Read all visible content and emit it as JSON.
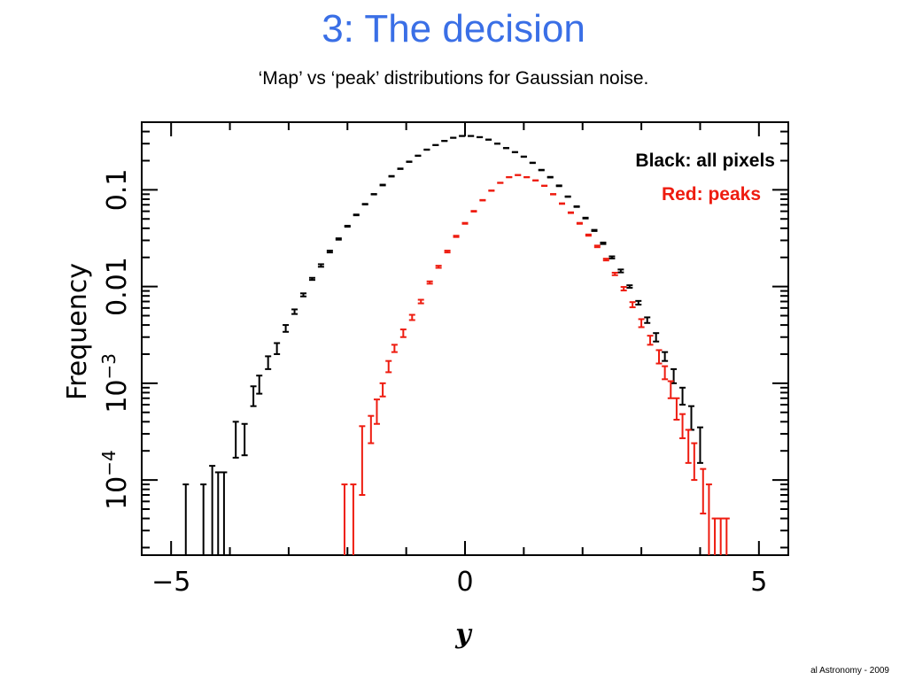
{
  "slide": {
    "title": "3: The decision",
    "subtitle": "‘Map’ vs ‘peak’ distributions for Gaussian noise.",
    "footer": "al Astronomy - 2009"
  },
  "colors": {
    "title": "#3a6fe6",
    "black_series": "#000000",
    "red_series": "#ee1c10"
  },
  "chart_data": {
    "type": "scatter",
    "title": "",
    "xlabel": "y",
    "ylabel": "Frequency",
    "xlim": [
      -5.5,
      5.5
    ],
    "ylim": [
      1.67e-05,
      0.5
    ],
    "yscale": "log",
    "grid": false,
    "x_ticks": [
      {
        "value": -5,
        "label": "−5"
      },
      {
        "value": 0,
        "label": "0"
      },
      {
        "value": 5,
        "label": "5"
      }
    ],
    "y_ticks": [
      {
        "value": 0.1,
        "label": "0.1"
      },
      {
        "value": 0.01,
        "label": "0.01"
      },
      {
        "value": 0.001,
        "label": "10−3",
        "mantissa": "10",
        "exponent": "−3"
      },
      {
        "value": 0.0001,
        "label": "10−4",
        "mantissa": "10",
        "exponent": "−4"
      }
    ],
    "legend": [
      {
        "text": "Black: all pixels",
        "color": "#000000"
      },
      {
        "text": "Red: peaks",
        "color": "#ee1c10"
      }
    ],
    "legend_position": "top-right",
    "series": [
      {
        "color": "#000000",
        "points": [
          {
            "x": -4.75,
            "y": 4e-05,
            "lo": 1.67e-05,
            "hi": 9e-05
          },
          {
            "x": -4.45,
            "y": 4e-05,
            "lo": 1.67e-05,
            "hi": 9e-05
          },
          {
            "x": -4.3,
            "y": 7e-05,
            "lo": 1.67e-05,
            "hi": 0.00014
          },
          {
            "x": -4.2,
            "y": 6e-05,
            "lo": 1.67e-05,
            "hi": 0.00012
          },
          {
            "x": -4.1,
            "y": 6e-05,
            "lo": 1.67e-05,
            "hi": 0.00012
          },
          {
            "x": -3.9,
            "y": 0.00027,
            "lo": 0.00017,
            "hi": 0.0004
          },
          {
            "x": -3.75,
            "y": 0.00027,
            "lo": 0.00018,
            "hi": 0.00038
          },
          {
            "x": -3.6,
            "y": 0.00075,
            "lo": 0.00058,
            "hi": 0.00093
          },
          {
            "x": -3.5,
            "y": 0.00095,
            "lo": 0.00078,
            "hi": 0.0012
          },
          {
            "x": -3.35,
            "y": 0.0016,
            "lo": 0.0014,
            "hi": 0.0019
          },
          {
            "x": -3.2,
            "y": 0.0023,
            "lo": 0.002,
            "hi": 0.0026
          },
          {
            "x": -3.05,
            "y": 0.0037,
            "lo": 0.0034,
            "hi": 0.004
          },
          {
            "x": -2.9,
            "y": 0.0055,
            "lo": 0.0052,
            "hi": 0.0058
          },
          {
            "x": -2.75,
            "y": 0.0082,
            "lo": 0.0079,
            "hi": 0.0085
          },
          {
            "x": -2.6,
            "y": 0.012,
            "lo": 0.0117,
            "hi": 0.0123
          },
          {
            "x": -2.45,
            "y": 0.0165,
            "lo": 0.016,
            "hi": 0.017
          },
          {
            "x": -2.3,
            "y": 0.023,
            "lo": 0.0225,
            "hi": 0.0235
          },
          {
            "x": -2.15,
            "y": 0.031,
            "lo": 0.0305,
            "hi": 0.0315
          },
          {
            "x": -2.0,
            "y": 0.042,
            "lo": 0.0415,
            "hi": 0.0425
          },
          {
            "x": -1.85,
            "y": 0.055,
            "lo": 0.0545,
            "hi": 0.0555
          },
          {
            "x": -1.7,
            "y": 0.071,
            "lo": 0.0705,
            "hi": 0.0715
          },
          {
            "x": -1.55,
            "y": 0.09,
            "lo": 0.0895,
            "hi": 0.0905
          },
          {
            "x": -1.4,
            "y": 0.112,
            "lo": 0.111,
            "hi": 0.113
          },
          {
            "x": -1.25,
            "y": 0.138,
            "lo": 0.137,
            "hi": 0.139
          },
          {
            "x": -1.1,
            "y": 0.165,
            "lo": 0.164,
            "hi": 0.166
          },
          {
            "x": -0.95,
            "y": 0.195,
            "lo": 0.194,
            "hi": 0.196
          },
          {
            "x": -0.8,
            "y": 0.225,
            "lo": 0.224,
            "hi": 0.226
          },
          {
            "x": -0.65,
            "y": 0.26,
            "lo": 0.259,
            "hi": 0.261
          },
          {
            "x": -0.5,
            "y": 0.29,
            "lo": 0.289,
            "hi": 0.291
          },
          {
            "x": -0.35,
            "y": 0.32,
            "lo": 0.319,
            "hi": 0.321
          },
          {
            "x": -0.2,
            "y": 0.345,
            "lo": 0.344,
            "hi": 0.346
          },
          {
            "x": -0.05,
            "y": 0.36,
            "lo": 0.359,
            "hi": 0.361
          },
          {
            "x": 0.1,
            "y": 0.36,
            "lo": 0.359,
            "hi": 0.361
          },
          {
            "x": 0.25,
            "y": 0.35,
            "lo": 0.349,
            "hi": 0.351
          },
          {
            "x": 0.4,
            "y": 0.33,
            "lo": 0.329,
            "hi": 0.331
          },
          {
            "x": 0.55,
            "y": 0.3,
            "lo": 0.299,
            "hi": 0.301
          },
          {
            "x": 0.7,
            "y": 0.27,
            "lo": 0.269,
            "hi": 0.271
          },
          {
            "x": 0.85,
            "y": 0.245,
            "lo": 0.244,
            "hi": 0.246
          },
          {
            "x": 1.0,
            "y": 0.22,
            "lo": 0.219,
            "hi": 0.221
          },
          {
            "x": 1.15,
            "y": 0.19,
            "lo": 0.189,
            "hi": 0.191
          },
          {
            "x": 1.3,
            "y": 0.16,
            "lo": 0.159,
            "hi": 0.161
          },
          {
            "x": 1.45,
            "y": 0.135,
            "lo": 0.134,
            "hi": 0.136
          },
          {
            "x": 1.6,
            "y": 0.11,
            "lo": 0.109,
            "hi": 0.111
          },
          {
            "x": 1.75,
            "y": 0.085,
            "lo": 0.0845,
            "hi": 0.0855
          },
          {
            "x": 1.9,
            "y": 0.067,
            "lo": 0.0665,
            "hi": 0.0675
          },
          {
            "x": 2.05,
            "y": 0.051,
            "lo": 0.0505,
            "hi": 0.0515
          },
          {
            "x": 2.2,
            "y": 0.038,
            "lo": 0.0375,
            "hi": 0.0385
          },
          {
            "x": 2.35,
            "y": 0.028,
            "lo": 0.0275,
            "hi": 0.0285
          },
          {
            "x": 2.5,
            "y": 0.02,
            "lo": 0.0195,
            "hi": 0.0205
          },
          {
            "x": 2.65,
            "y": 0.0145,
            "lo": 0.014,
            "hi": 0.015
          },
          {
            "x": 2.8,
            "y": 0.01,
            "lo": 0.0097,
            "hi": 0.0103
          },
          {
            "x": 2.95,
            "y": 0.0068,
            "lo": 0.0065,
            "hi": 0.0071
          },
          {
            "x": 3.1,
            "y": 0.0045,
            "lo": 0.0042,
            "hi": 0.0048
          },
          {
            "x": 3.25,
            "y": 0.003,
            "lo": 0.0027,
            "hi": 0.0033
          },
          {
            "x": 3.4,
            "y": 0.0019,
            "lo": 0.0017,
            "hi": 0.0021
          },
          {
            "x": 3.55,
            "y": 0.0012,
            "lo": 0.001,
            "hi": 0.0014
          },
          {
            "x": 3.7,
            "y": 0.00075,
            "lo": 0.0006,
            "hi": 0.0009
          },
          {
            "x": 3.85,
            "y": 0.00045,
            "lo": 0.00033,
            "hi": 0.00058
          },
          {
            "x": 4.0,
            "y": 0.00024,
            "lo": 0.00015,
            "hi": 0.00035
          }
        ]
      },
      {
        "color": "#ee1c10",
        "points": [
          {
            "x": -2.05,
            "y": 5.5e-05,
            "lo": 1.67e-05,
            "hi": 9e-05
          },
          {
            "x": -1.9,
            "y": 5.5e-05,
            "lo": 1.67e-05,
            "hi": 9e-05
          },
          {
            "x": -1.75,
            "y": 0.00027,
            "lo": 7e-05,
            "hi": 0.00036
          },
          {
            "x": -1.6,
            "y": 0.00035,
            "lo": 0.00024,
            "hi": 0.00046
          },
          {
            "x": -1.5,
            "y": 0.00053,
            "lo": 0.00038,
            "hi": 0.00068
          },
          {
            "x": -1.4,
            "y": 0.00087,
            "lo": 0.00073,
            "hi": 0.001
          },
          {
            "x": -1.3,
            "y": 0.0015,
            "lo": 0.0013,
            "hi": 0.0017
          },
          {
            "x": -1.2,
            "y": 0.0023,
            "lo": 0.0021,
            "hi": 0.0025
          },
          {
            "x": -1.05,
            "y": 0.0033,
            "lo": 0.003,
            "hi": 0.0036
          },
          {
            "x": -0.9,
            "y": 0.0048,
            "lo": 0.0045,
            "hi": 0.0051
          },
          {
            "x": -0.75,
            "y": 0.007,
            "lo": 0.0067,
            "hi": 0.0073
          },
          {
            "x": -0.6,
            "y": 0.011,
            "lo": 0.0107,
            "hi": 0.0113
          },
          {
            "x": -0.45,
            "y": 0.016,
            "lo": 0.0156,
            "hi": 0.0164
          },
          {
            "x": -0.3,
            "y": 0.023,
            "lo": 0.0225,
            "hi": 0.0235
          },
          {
            "x": -0.15,
            "y": 0.033,
            "lo": 0.0325,
            "hi": 0.0335
          },
          {
            "x": 0.0,
            "y": 0.045,
            "lo": 0.0445,
            "hi": 0.0455
          },
          {
            "x": 0.15,
            "y": 0.06,
            "lo": 0.0595,
            "hi": 0.0605
          },
          {
            "x": 0.3,
            "y": 0.078,
            "lo": 0.0775,
            "hi": 0.0785
          },
          {
            "x": 0.45,
            "y": 0.098,
            "lo": 0.0975,
            "hi": 0.0985
          },
          {
            "x": 0.6,
            "y": 0.118,
            "lo": 0.1175,
            "hi": 0.1185
          },
          {
            "x": 0.75,
            "y": 0.135,
            "lo": 0.1345,
            "hi": 0.1355
          },
          {
            "x": 0.9,
            "y": 0.142,
            "lo": 0.1415,
            "hi": 0.1425
          },
          {
            "x": 1.05,
            "y": 0.135,
            "lo": 0.1345,
            "hi": 0.1355
          },
          {
            "x": 1.2,
            "y": 0.125,
            "lo": 0.1245,
            "hi": 0.1255
          },
          {
            "x": 1.35,
            "y": 0.11,
            "lo": 0.1095,
            "hi": 0.1105
          },
          {
            "x": 1.5,
            "y": 0.09,
            "lo": 0.0895,
            "hi": 0.0905
          },
          {
            "x": 1.65,
            "y": 0.072,
            "lo": 0.0715,
            "hi": 0.0725
          },
          {
            "x": 1.8,
            "y": 0.058,
            "lo": 0.0575,
            "hi": 0.0585
          },
          {
            "x": 1.95,
            "y": 0.045,
            "lo": 0.0445,
            "hi": 0.0455
          },
          {
            "x": 2.1,
            "y": 0.034,
            "lo": 0.0335,
            "hi": 0.0345
          },
          {
            "x": 2.25,
            "y": 0.026,
            "lo": 0.0255,
            "hi": 0.0265
          },
          {
            "x": 2.4,
            "y": 0.019,
            "lo": 0.0186,
            "hi": 0.0194
          },
          {
            "x": 2.55,
            "y": 0.0135,
            "lo": 0.0131,
            "hi": 0.0139
          },
          {
            "x": 2.7,
            "y": 0.0095,
            "lo": 0.0091,
            "hi": 0.0099
          },
          {
            "x": 2.85,
            "y": 0.0065,
            "lo": 0.0061,
            "hi": 0.0069
          },
          {
            "x": 3.0,
            "y": 0.0042,
            "lo": 0.0038,
            "hi": 0.0046
          },
          {
            "x": 3.15,
            "y": 0.0028,
            "lo": 0.0025,
            "hi": 0.0031
          },
          {
            "x": 3.3,
            "y": 0.0019,
            "lo": 0.0016,
            "hi": 0.0022
          },
          {
            "x": 3.4,
            "y": 0.0013,
            "lo": 0.0011,
            "hi": 0.0015
          },
          {
            "x": 3.5,
            "y": 0.00088,
            "lo": 0.0007,
            "hi": 0.00105
          },
          {
            "x": 3.6,
            "y": 0.00056,
            "lo": 0.00042,
            "hi": 0.0007
          },
          {
            "x": 3.7,
            "y": 0.00037,
            "lo": 0.00027,
            "hi": 0.00048
          },
          {
            "x": 3.8,
            "y": 0.00024,
            "lo": 0.00015,
            "hi": 0.00033
          },
          {
            "x": 3.9,
            "y": 0.00016,
            "lo": 0.0001,
            "hi": 0.00024
          },
          {
            "x": 4.05,
            "y": 9e-05,
            "lo": 4.5e-05,
            "hi": 0.00013
          },
          {
            "x": 4.15,
            "y": 4e-05,
            "lo": 1.67e-05,
            "hi": 9e-05
          },
          {
            "x": 4.25,
            "y": 4e-05,
            "lo": 1.67e-05,
            "hi": 4e-05
          },
          {
            "x": 4.35,
            "y": 4e-05,
            "lo": 1.67e-05,
            "hi": 4e-05
          },
          {
            "x": 4.45,
            "y": 4e-05,
            "lo": 1.67e-05,
            "hi": 4e-05
          }
        ]
      }
    ]
  }
}
